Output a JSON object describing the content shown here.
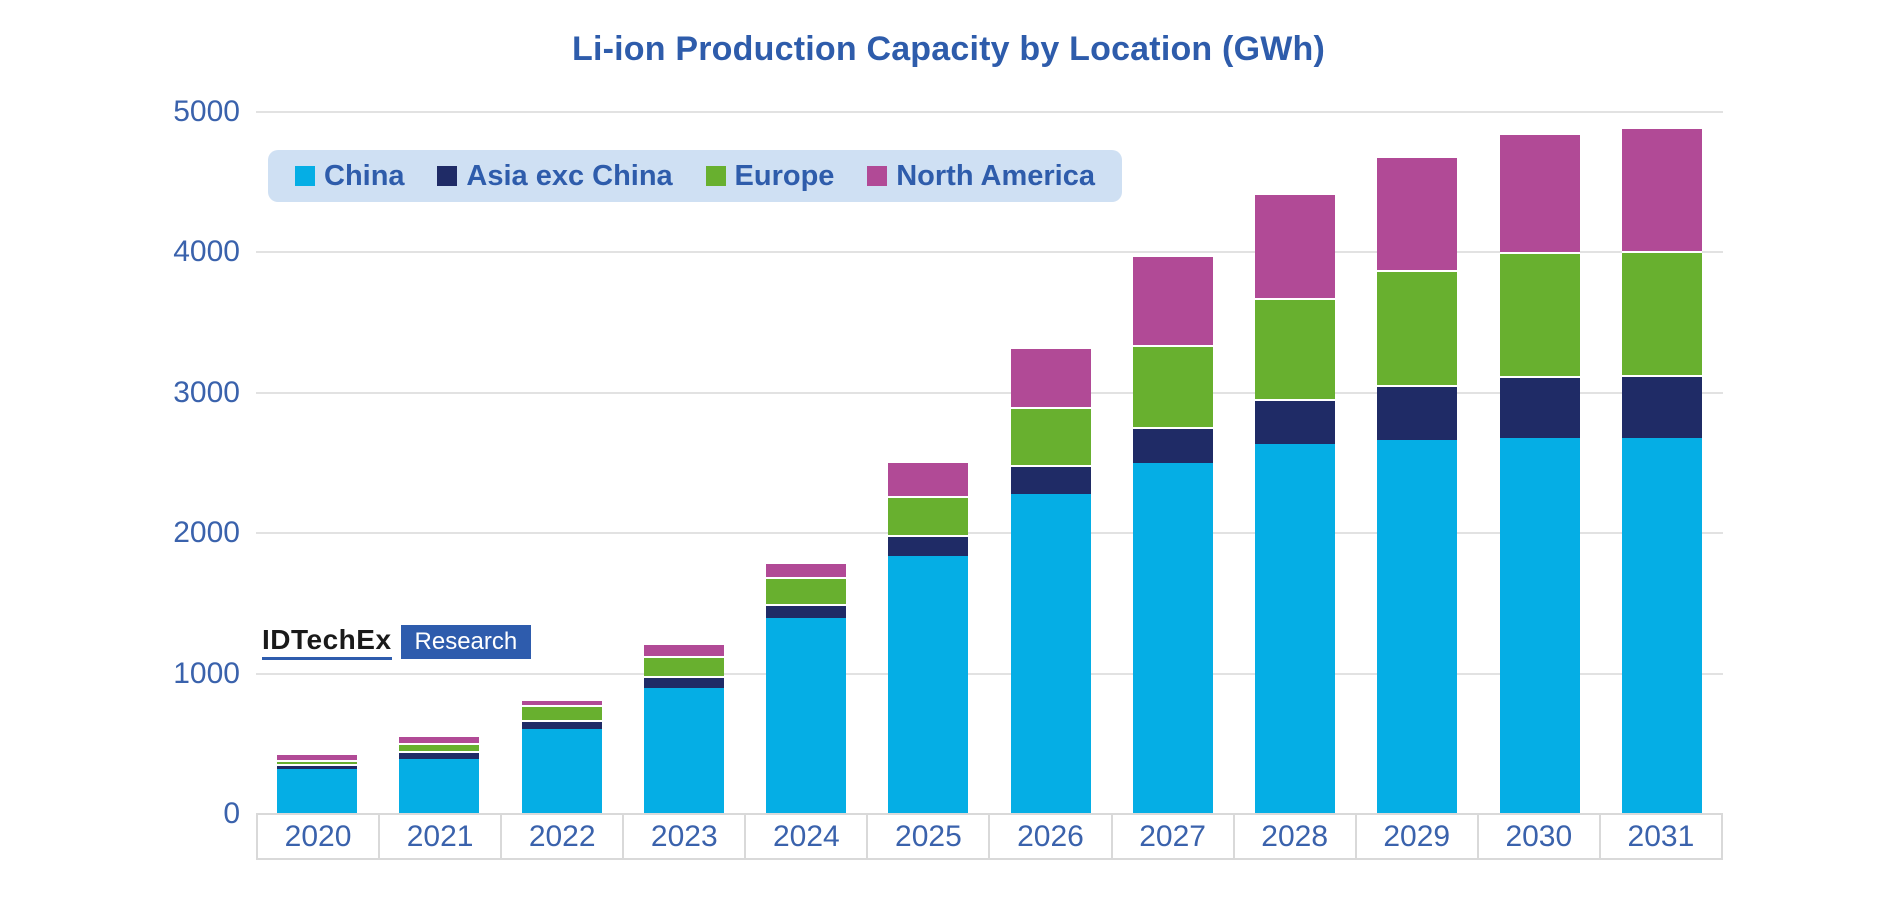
{
  "title": "Li-ion Production Capacity by Location (GWh)",
  "logo": {
    "brand": "IDTechEx",
    "suffix": "Research"
  },
  "colors": {
    "china": "#05AEE5",
    "asia_exc_china": "#1F2B66",
    "europe": "#68B02F",
    "north_america": "#B14A96",
    "title_text": "#2E5CAB",
    "axis_text": "#3A62AC",
    "legend_bg": "#CFE0F3",
    "gridline": "#E2E2E2",
    "band_border": "#D9D9D9",
    "logo_accent": "#2E5CAD"
  },
  "chart_data": {
    "type": "bar",
    "stacked": true,
    "title": "Li-ion Production Capacity by Location (GWh)",
    "xlabel": "",
    "ylabel": "",
    "ylim": [
      0,
      5000
    ],
    "yticks": [
      5000,
      4000,
      3000,
      2000,
      1000,
      0
    ],
    "grid": "horizontal",
    "legend_position": "top-left",
    "categories": [
      "2020",
      "2021",
      "2022",
      "2023",
      "2024",
      "2025",
      "2026",
      "2027",
      "2028",
      "2029",
      "2030",
      "2031"
    ],
    "series": [
      {
        "name": "China",
        "color": "#05AEE5",
        "values": [
          315,
          385,
          600,
          890,
          1390,
          1830,
          2270,
          2490,
          2630,
          2660,
          2670,
          2670
        ]
      },
      {
        "name": "Asia exc China",
        "color": "#1F2B66",
        "values": [
          35,
          60,
          65,
          85,
          100,
          150,
          205,
          255,
          320,
          390,
          440,
          450
        ]
      },
      {
        "name": "Europe",
        "color": "#68B02F",
        "values": [
          30,
          55,
          105,
          140,
          190,
          280,
          410,
          585,
          720,
          820,
          880,
          880
        ]
      },
      {
        "name": "North America",
        "color": "#B14A96",
        "values": [
          50,
          55,
          45,
          90,
          110,
          250,
          425,
          640,
          750,
          810,
          850,
          880
        ]
      }
    ],
    "totals": [
      430,
      555,
      815,
      1205,
      1790,
      2510,
      3310,
      3970,
      4420,
      4680,
      4840,
      4880
    ]
  }
}
